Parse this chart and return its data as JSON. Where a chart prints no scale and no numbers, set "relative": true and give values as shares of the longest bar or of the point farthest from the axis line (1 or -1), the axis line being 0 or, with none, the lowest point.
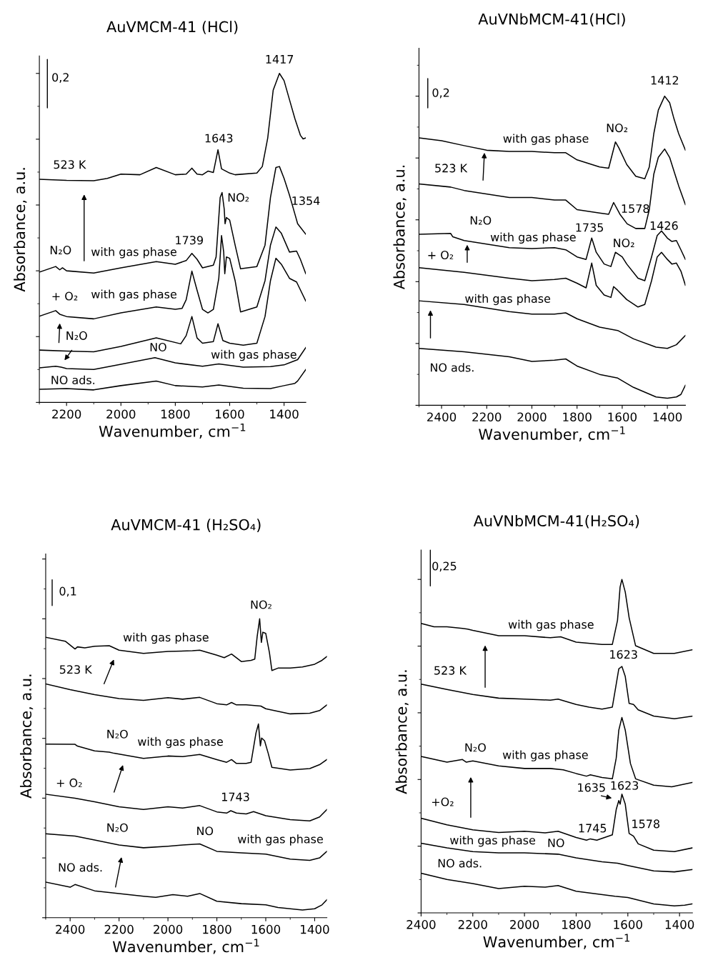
{
  "chart_data": [
    {
      "type": "line",
      "title": "AuVMCM-41 (HCl)",
      "xlabel": "Wavenumber, cm$^{−1}$",
      "ylabel": "Absorbance, a.u.",
      "relative": true,
      "tick_labels": "x",
      "xlim": [
        2300,
        1320
      ],
      "xticks": [
        2200,
        2000,
        1800,
        1600,
        1400
      ],
      "series": [
        {
          "color": "#000000",
          "x": [
            2300,
            2200,
            2100,
            2000,
            1870,
            1800,
            1700,
            1640,
            1550,
            1450,
            1400,
            1360,
            1350,
            1320
          ],
          "values": [
            0.04,
            0.042,
            0.038,
            0.051,
            0.065,
            0.051,
            0.047,
            0.053,
            0.043,
            0.042,
            0.051,
            0.058,
            0.065,
            0.1
          ]
        },
        {
          "color": "#000000",
          "x": [
            2300,
            2240,
            2220,
            2200,
            2100,
            2000,
            1875,
            1800,
            1700,
            1640,
            1550,
            1450,
            1400,
            1350,
            1320
          ],
          "values": [
            0.105,
            0.11,
            0.107,
            0.103,
            0.1,
            0.116,
            0.136,
            0.12,
            0.11,
            0.117,
            0.107,
            0.109,
            0.114,
            0.13,
            0.167
          ]
        },
        {
          "color": "#000000",
          "x": [
            2300,
            2200,
            2100,
            2000,
            1870,
            1780,
            1760,
            1739,
            1720,
            1700,
            1660,
            1643,
            1625,
            1600,
            1550,
            1500,
            1470,
            1450,
            1430,
            1410,
            1380,
            1354,
            1320
          ],
          "values": [
            0.159,
            0.156,
            0.154,
            0.17,
            0.196,
            0.178,
            0.203,
            0.261,
            0.196,
            0.18,
            0.185,
            0.239,
            0.188,
            0.18,
            0.174,
            0.18,
            0.261,
            0.37,
            0.438,
            0.42,
            0.377,
            0.366,
            0.308
          ]
        },
        {
          "color": "#000000",
          "x": [
            2300,
            2240,
            2225,
            2200,
            2100,
            2000,
            1870,
            1800,
            1775,
            1760,
            1739,
            1720,
            1700,
            1680,
            1660,
            1640,
            1630,
            1622,
            1618,
            1612,
            1600,
            1580,
            1560,
            1500,
            1470,
            1450,
            1430,
            1410,
            1380,
            1354,
            1340,
            1320
          ],
          "values": [
            0.262,
            0.279,
            0.268,
            0.261,
            0.254,
            0.272,
            0.29,
            0.283,
            0.286,
            0.312,
            0.399,
            0.341,
            0.283,
            0.272,
            0.283,
            0.377,
            0.507,
            0.457,
            0.391,
            0.442,
            0.438,
            0.37,
            0.275,
            0.29,
            0.37,
            0.478,
            0.533,
            0.514,
            0.457,
            0.46,
            0.435,
            0.391
          ]
        },
        {
          "color": "#000000",
          "x": [
            2300,
            2240,
            2225,
            2215,
            2200,
            2100,
            2000,
            1870,
            1800,
            1760,
            1739,
            1720,
            1700,
            1660,
            1650,
            1635,
            1628,
            1620,
            1617,
            1612,
            1600,
            1580,
            1560,
            1500,
            1470,
            1450,
            1430,
            1417,
            1400,
            1380,
            1360,
            1350,
            1320
          ],
          "values": [
            0.396,
            0.413,
            0.403,
            0.409,
            0.4,
            0.393,
            0.409,
            0.428,
            0.42,
            0.431,
            0.453,
            0.435,
            0.409,
            0.417,
            0.442,
            0.623,
            0.638,
            0.587,
            0.543,
            0.562,
            0.554,
            0.478,
            0.406,
            0.413,
            0.478,
            0.623,
            0.714,
            0.717,
            0.681,
            0.63,
            0.572,
            0.543,
            0.511
          ]
        },
        {
          "color": "#000000",
          "x": [
            2300,
            2200,
            2100,
            2050,
            2000,
            1930,
            1870,
            1800,
            1760,
            1739,
            1720,
            1700,
            1680,
            1660,
            1643,
            1630,
            1600,
            1580,
            1500,
            1480,
            1460,
            1440,
            1417,
            1400,
            1380,
            1360,
            1340,
            1330,
            1320
          ],
          "values": [
            0.678,
            0.675,
            0.674,
            0.681,
            0.694,
            0.692,
            0.714,
            0.692,
            0.694,
            0.712,
            0.694,
            0.692,
            0.703,
            0.699,
            0.768,
            0.71,
            0.697,
            0.692,
            0.697,
            0.717,
            0.804,
            0.949,
            1.0,
            0.978,
            0.92,
            0.862,
            0.812,
            0.801,
            0.804
          ]
        }
      ],
      "annotations": [
        "0,2",
        "1417",
        "1643",
        "523 K",
        "NO₂",
        "1354",
        "1739",
        "N₂O",
        "with gas phase",
        "+ O₂",
        "with gas phase",
        "N₂O",
        "NO",
        "with gas phase",
        "NO ads."
      ]
    },
    {
      "type": "line",
      "title": "AuVNbMCM-41(HCl)",
      "xlabel": "Wavenumber, cm$^{−1}$",
      "ylabel": "Absorbance, a.u.",
      "relative": true,
      "tick_labels": "x",
      "xlim": [
        2500,
        1320
      ],
      "xticks": [
        2400,
        2200,
        2000,
        1800,
        1600,
        1400
      ],
      "series": [
        {
          "color": "#000000",
          "x": [
            2500,
            2300,
            2100,
            2000,
            1900,
            1850,
            1800,
            1700,
            1620,
            1550,
            1450,
            1400,
            1360,
            1340,
            1320
          ],
          "values": [
            0.184,
            0.173,
            0.157,
            0.142,
            0.146,
            0.15,
            0.127,
            0.1,
            0.088,
            0.058,
            0.027,
            0.023,
            0.027,
            0.035,
            0.065
          ]
        },
        {
          "color": "#000000",
          "x": [
            2500,
            2300,
            2100,
            2000,
            1900,
            1850,
            1800,
            1700,
            1620,
            1550,
            1450,
            1400,
            1360,
            1320
          ],
          "values": [
            0.338,
            0.326,
            0.303,
            0.295,
            0.295,
            0.299,
            0.28,
            0.253,
            0.242,
            0.215,
            0.188,
            0.184,
            0.196,
            0.226
          ]
        },
        {
          "color": "#000000",
          "x": [
            2500,
            2300,
            2100,
            2000,
            1900,
            1850,
            1800,
            1760,
            1735,
            1715,
            1680,
            1650,
            1638,
            1620,
            1580,
            1530,
            1500,
            1470,
            1445,
            1426,
            1400,
            1380,
            1360,
            1340,
            1320
          ],
          "values": [
            0.445,
            0.43,
            0.411,
            0.403,
            0.407,
            0.411,
            0.395,
            0.38,
            0.46,
            0.388,
            0.357,
            0.349,
            0.384,
            0.372,
            0.342,
            0.318,
            0.326,
            0.403,
            0.48,
            0.495,
            0.472,
            0.457,
            0.46,
            0.434,
            0.388
          ]
        },
        {
          "color": "#000000",
          "x": [
            2500,
            2360,
            2350,
            2300,
            2100,
            2000,
            1900,
            1850,
            1800,
            1760,
            1735,
            1715,
            1680,
            1650,
            1630,
            1600,
            1580,
            1530,
            1500,
            1470,
            1445,
            1426,
            1400,
            1380,
            1360,
            1340,
            1320
          ],
          "values": [
            0.553,
            0.556,
            0.545,
            0.533,
            0.51,
            0.507,
            0.51,
            0.503,
            0.48,
            0.472,
            0.541,
            0.495,
            0.457,
            0.449,
            0.495,
            0.48,
            0.457,
            0.411,
            0.403,
            0.48,
            0.549,
            0.564,
            0.541,
            0.53,
            0.533,
            0.503,
            0.472
          ]
        },
        {
          "color": "#000000",
          "x": [
            2500,
            2360,
            2300,
            2100,
            2000,
            1900,
            1850,
            1800,
            1700,
            1660,
            1638,
            1610,
            1578,
            1540,
            1500,
            1480,
            1460,
            1440,
            1412,
            1390,
            1370,
            1350,
            1320
          ],
          "values": [
            0.716,
            0.706,
            0.695,
            0.672,
            0.672,
            0.664,
            0.664,
            0.633,
            0.622,
            0.618,
            0.656,
            0.618,
            0.587,
            0.572,
            0.572,
            0.633,
            0.748,
            0.802,
            0.829,
            0.802,
            0.756,
            0.71,
            0.649
          ]
        },
        {
          "color": "#000000",
          "x": [
            2500,
            2400,
            2300,
            2200,
            2100,
            2000,
            1900,
            1850,
            1800,
            1700,
            1660,
            1630,
            1615,
            1580,
            1540,
            1500,
            1480,
            1460,
            1440,
            1412,
            1390,
            1370,
            1350,
            1320
          ],
          "values": [
            0.865,
            0.856,
            0.84,
            0.825,
            0.821,
            0.821,
            0.817,
            0.817,
            0.794,
            0.771,
            0.767,
            0.852,
            0.833,
            0.779,
            0.741,
            0.733,
            0.771,
            0.879,
            0.955,
            1.0,
            0.979,
            0.925,
            0.879,
            0.825
          ]
        }
      ],
      "annotations": [
        "0,2",
        "1412",
        "NO₂",
        "with gas phase",
        "523 K",
        "1578",
        "N₂O",
        "1735",
        "1426",
        "with gas phase",
        "NO₂",
        "+ O₂",
        "with gas phase",
        "NO ads."
      ]
    },
    {
      "type": "line",
      "title": "AuVMCM-41 (H₂SO₄)",
      "xlabel": "Wavenumber, cm$^{−1}$",
      "ylabel": "Absorbance, a.u.",
      "relative": true,
      "tick_labels": "x",
      "xlim": [
        2500,
        1350
      ],
      "xticks": [
        2400,
        2200,
        2000,
        1800,
        1600,
        1400
      ],
      "series": [
        {
          "color": "#000000",
          "x": [
            2500,
            2400,
            2380,
            2300,
            2100,
            2050,
            1980,
            1920,
            1870,
            1800,
            1700,
            1600,
            1550,
            1450,
            1400,
            1370,
            1350
          ],
          "values": [
            0.119,
            0.102,
            0.111,
            0.09,
            0.072,
            0.068,
            0.077,
            0.072,
            0.081,
            0.055,
            0.047,
            0.043,
            0.034,
            0.026,
            0.03,
            0.043,
            0.06
          ]
        },
        {
          "color": "#000000",
          "x": [
            2500,
            2380,
            2300,
            2200,
            2100,
            2000,
            1940,
            1870,
            1800,
            1700,
            1600,
            1500,
            1420,
            1380,
            1350
          ],
          "values": [
            0.281,
            0.273,
            0.26,
            0.243,
            0.234,
            0.239,
            0.243,
            0.247,
            0.222,
            0.217,
            0.213,
            0.196,
            0.192,
            0.2,
            0.222
          ]
        },
        {
          "color": "#000000",
          "x": [
            2500,
            2380,
            2300,
            2200,
            2100,
            2000,
            1940,
            1870,
            1800,
            1760,
            1743,
            1720,
            1680,
            1650,
            1600,
            1500,
            1420,
            1380,
            1350
          ],
          "values": [
            0.413,
            0.4,
            0.388,
            0.371,
            0.362,
            0.371,
            0.367,
            0.375,
            0.354,
            0.35,
            0.358,
            0.35,
            0.347,
            0.355,
            0.341,
            0.328,
            0.324,
            0.337,
            0.362
          ]
        },
        {
          "color": "#000000",
          "x": [
            2500,
            2380,
            2370,
            2300,
            2240,
            2220,
            2100,
            2000,
            1940,
            1870,
            1800,
            1760,
            1740,
            1720,
            1680,
            1660,
            1640,
            1630,
            1622,
            1617,
            1605,
            1590,
            1575,
            1500,
            1420,
            1380,
            1350
          ],
          "values": [
            0.581,
            0.58,
            0.574,
            0.558,
            0.554,
            0.55,
            0.533,
            0.541,
            0.539,
            0.546,
            0.529,
            0.52,
            0.529,
            0.516,
            0.516,
            0.52,
            0.618,
            0.648,
            0.575,
            0.601,
            0.592,
            0.55,
            0.503,
            0.494,
            0.499,
            0.512,
            0.529
          ]
        },
        {
          "color": "#000000",
          "x": [
            2500,
            2400,
            2300,
            2200,
            2100,
            2000,
            1940,
            1870,
            1800,
            1760,
            1740,
            1720,
            1680,
            1620,
            1600,
            1500,
            1420,
            1380,
            1350
          ],
          "values": [
            0.782,
            0.763,
            0.746,
            0.733,
            0.727,
            0.736,
            0.731,
            0.737,
            0.716,
            0.712,
            0.72,
            0.712,
            0.712,
            0.708,
            0.699,
            0.682,
            0.684,
            0.693,
            0.712
          ]
        },
        {
          "color": "#000000",
          "x": [
            2500,
            2420,
            2380,
            2370,
            2340,
            2300,
            2240,
            2200,
            2100,
            2000,
            1900,
            1870,
            1800,
            1770,
            1740,
            1700,
            1660,
            1645,
            1635,
            1625,
            1618,
            1612,
            1600,
            1585,
            1575,
            1550,
            1500,
            1450,
            1400,
            1370,
            1350
          ],
          "values": [
            0.938,
            0.925,
            0.899,
            0.906,
            0.903,
            0.908,
            0.91,
            0.895,
            0.884,
            0.891,
            0.893,
            0.895,
            0.878,
            0.87,
            0.882,
            0.857,
            0.861,
            0.865,
            0.942,
            1.0,
            0.921,
            0.955,
            0.951,
            0.887,
            0.827,
            0.835,
            0.835,
            0.839,
            0.848,
            0.861,
            0.874
          ]
        }
      ],
      "annotations": [
        "0,1",
        "NO₂",
        "with gas phase",
        "523 K",
        "N₂O",
        "with gas phase",
        "+ O₂",
        "1743",
        "N₂O",
        "NO",
        "with gas phase",
        "NO ads."
      ]
    },
    {
      "type": "line",
      "title": "AuVNbMCM-41(H₂SO₄)",
      "xlabel": "Wavenumber, cm$^{−1}$",
      "ylabel": "Absorbance, a.u.",
      "relative": true,
      "tick_labels": "x",
      "xlim": [
        2400,
        1350
      ],
      "xticks": [
        2400,
        2200,
        2000,
        1800,
        1600,
        1400
      ],
      "series": [
        {
          "color": "#000000",
          "x": [
            2400,
            2300,
            2200,
            2100,
            2000,
            1920,
            1870,
            1800,
            1650,
            1600,
            1500,
            1420,
            1380,
            1350
          ],
          "values": [
            0.119,
            0.1,
            0.088,
            0.073,
            0.08,
            0.077,
            0.082,
            0.065,
            0.05,
            0.046,
            0.027,
            0.021,
            0.023,
            0.027
          ]
        },
        {
          "color": "#000000",
          "x": [
            2400,
            2300,
            2200,
            2100,
            2000,
            1870,
            1800,
            1700,
            1640,
            1600,
            1500,
            1420,
            1350
          ],
          "values": [
            0.209,
            0.195,
            0.184,
            0.18,
            0.18,
            0.176,
            0.165,
            0.153,
            0.149,
            0.142,
            0.126,
            0.123,
            0.13
          ]
        },
        {
          "color": "#000000",
          "x": [
            2400,
            2300,
            2200,
            2100,
            2000,
            1920,
            1870,
            1800,
            1760,
            1745,
            1720,
            1660,
            1645,
            1635,
            1630,
            1623,
            1610,
            1595,
            1578,
            1560,
            1500,
            1420,
            1350
          ],
          "values": [
            0.284,
            0.264,
            0.249,
            0.241,
            0.245,
            0.24,
            0.245,
            0.226,
            0.218,
            0.222,
            0.218,
            0.234,
            0.31,
            0.337,
            0.326,
            0.356,
            0.326,
            0.238,
            0.23,
            0.207,
            0.188,
            0.184,
            0.195
          ]
        },
        {
          "color": "#000000",
          "x": [
            2400,
            2300,
            2240,
            2225,
            2200,
            2100,
            2000,
            1900,
            1850,
            1800,
            1760,
            1745,
            1700,
            1660,
            1645,
            1635,
            1623,
            1610,
            1590,
            1570,
            1500,
            1430,
            1350
          ],
          "values": [
            0.469,
            0.452,
            0.46,
            0.452,
            0.456,
            0.441,
            0.433,
            0.433,
            0.429,
            0.418,
            0.41,
            0.414,
            0.406,
            0.402,
            0.464,
            0.548,
            0.586,
            0.548,
            0.448,
            0.402,
            0.383,
            0.378,
            0.391
          ]
        },
        {
          "color": "#000000",
          "x": [
            2400,
            2300,
            2200,
            2100,
            2000,
            1900,
            1870,
            1800,
            1750,
            1700,
            1660,
            1645,
            1635,
            1623,
            1610,
            1595,
            1578,
            1560,
            1500,
            1420,
            1350
          ],
          "values": [
            0.686,
            0.67,
            0.655,
            0.644,
            0.641,
            0.638,
            0.641,
            0.625,
            0.617,
            0.611,
            0.617,
            0.686,
            0.732,
            0.739,
            0.709,
            0.628,
            0.625,
            0.609,
            0.59,
            0.582,
            0.59
          ]
        },
        {
          "color": "#000000",
          "x": [
            2400,
            2350,
            2300,
            2240,
            2220,
            2200,
            2100,
            2000,
            1900,
            1860,
            1800,
            1700,
            1660,
            1640,
            1630,
            1623,
            1610,
            1595,
            1570,
            1500,
            1420,
            1350
          ],
          "values": [
            0.868,
            0.858,
            0.858,
            0.853,
            0.851,
            0.847,
            0.831,
            0.831,
            0.825,
            0.828,
            0.812,
            0.805,
            0.805,
            0.877,
            0.977,
            1.0,
            0.962,
            0.885,
            0.801,
            0.778,
            0.778,
            0.789
          ]
        }
      ],
      "annotations": [
        "0,25",
        "with gas phase",
        "1623",
        "523 K",
        "N₂O",
        "with gas phase",
        "1635",
        "1623",
        "+O₂",
        "1578",
        "1745",
        "with gas phase",
        "NO",
        "NO ads."
      ]
    }
  ]
}
